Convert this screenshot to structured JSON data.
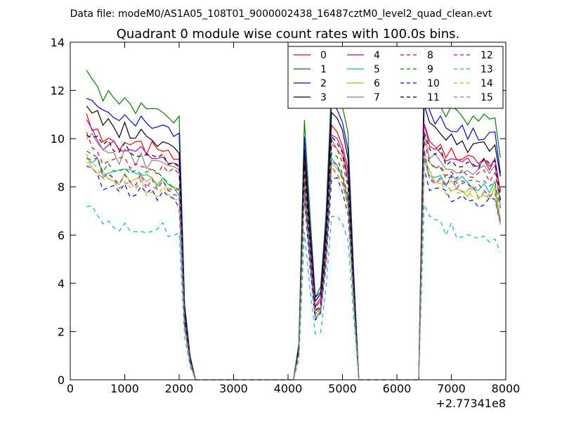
{
  "header": {
    "data_file": "Data file: modeM0/AS1A05_108T01_9000002438_16487cztM0_level2_quad_clean.evt"
  },
  "chart_data": {
    "type": "line",
    "title": "Quadrant 0 module wise count rates with 100.0s bins.",
    "xlabel": "",
    "ylabel": "",
    "x_offset_label": "+2.77341e8",
    "xlim": [
      0,
      8000
    ],
    "ylim": [
      0,
      14
    ],
    "xticks": [
      0,
      1000,
      2000,
      3000,
      4000,
      5000,
      6000,
      7000,
      8000
    ],
    "yticks": [
      0,
      2,
      4,
      6,
      8,
      10,
      12,
      14
    ],
    "grid": false,
    "legend_position": "top-right",
    "legend_columns": 4,
    "x_segments": [
      {
        "from": 300,
        "to": 2000,
        "step": 100
      },
      {
        "from": 2100,
        "to": 2300,
        "step": 100
      },
      {
        "from": 4100,
        "to": 4600,
        "step": 100
      },
      {
        "from": 4700,
        "to": 5300,
        "step": 100
      },
      {
        "from": 6400,
        "to": 7900,
        "step": 100
      }
    ],
    "pattern": {
      "seg1_shape": [
        1.0,
        0.98,
        0.96,
        0.92,
        0.93,
        0.91,
        0.9,
        0.92,
        0.9,
        0.89,
        0.9,
        0.88,
        0.89,
        0.87,
        0.88,
        0.86,
        0.85,
        0.84
      ],
      "fall_fraction": [
        0.25,
        0.08,
        0.0
      ],
      "seg3_fraction": [
        0.0,
        0.12,
        0.85,
        0.55,
        0.28,
        0.3
      ],
      "seg4_fraction": [
        0.55,
        0.97,
        0.95,
        0.9,
        0.8,
        0.38,
        0.0
      ],
      "seg5_fraction": [
        0.0,
        1.0,
        0.92,
        0.9,
        0.9,
        0.87,
        0.88,
        0.86,
        0.87,
        0.85,
        0.86,
        0.85,
        0.86,
        0.84,
        0.85,
        0.72
      ]
    },
    "series": [
      {
        "name": "0",
        "color": "#ff0000",
        "dash": false,
        "level": 10.8
      },
      {
        "name": "1",
        "color": "#008000",
        "dash": false,
        "level": 12.7
      },
      {
        "name": "2",
        "color": "#0000ff",
        "dash": false,
        "level": 11.9
      },
      {
        "name": "3",
        "color": "#000000",
        "dash": false,
        "level": 11.4
      },
      {
        "name": "4",
        "color": "#bf00bf",
        "dash": false,
        "level": 10.6
      },
      {
        "name": "5",
        "color": "#00bfbf",
        "dash": false,
        "level": 9.4
      },
      {
        "name": "6",
        "color": "#bfbf00",
        "dash": false,
        "level": 9.2
      },
      {
        "name": "7",
        "color": "#808080",
        "dash": false,
        "level": 10.2
      },
      {
        "name": "8",
        "color": "#ff0000",
        "dash": true,
        "level": 10.0
      },
      {
        "name": "9",
        "color": "#008000",
        "dash": true,
        "level": 9.6
      },
      {
        "name": "10",
        "color": "#0000ff",
        "dash": true,
        "level": 8.7
      },
      {
        "name": "11",
        "color": "#000000",
        "dash": true,
        "level": 10.4
      },
      {
        "name": "12",
        "color": "#bf00bf",
        "dash": true,
        "level": 9.3
      },
      {
        "name": "13",
        "color": "#00bfbf",
        "dash": true,
        "level": 7.1
      },
      {
        "name": "14",
        "color": "#bfbf00",
        "dash": true,
        "level": 9.0
      },
      {
        "name": "15",
        "color": "#808080",
        "dash": true,
        "level": 9.1
      }
    ]
  }
}
